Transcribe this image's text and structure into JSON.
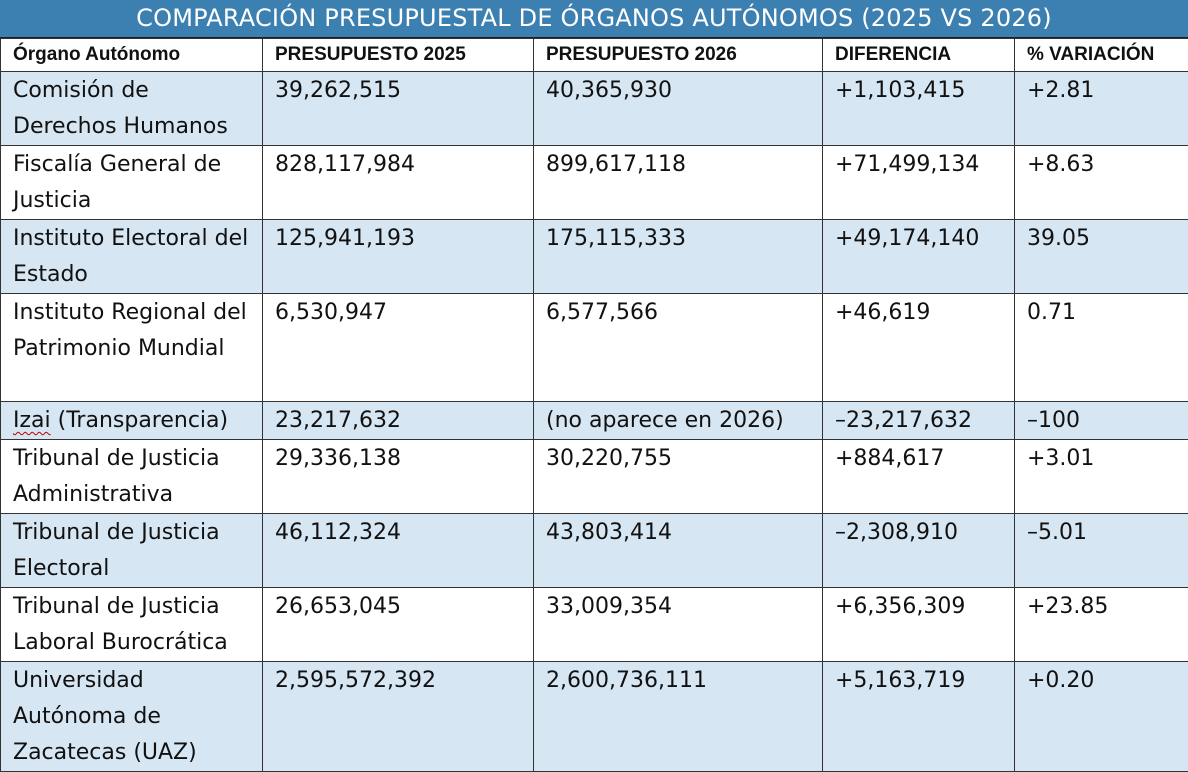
{
  "title": "COMPARACIÓN PRESUPUESTAL DE ÓRGANOS AUTÓNOMOS (2025 VS 2026)",
  "headers": {
    "organo": "Órgano Autónomo",
    "p2025": "PRESUPUESTO 2025",
    "p2026": "PRESUPUESTO 2026",
    "diferencia": "DIFERENCIA",
    "variacion": "% VARIACIÓN"
  },
  "rows": [
    {
      "organo": "Comisión de Derechos Humanos",
      "p2025": "39,262,515",
      "p2026": "40,365,930",
      "diferencia": "+1,103,415",
      "variacion": "+2.81"
    },
    {
      "organo": "Fiscalía General de Justicia",
      "p2025": "828,117,984",
      "p2026": "899,617,118",
      "diferencia": "+71,499,134",
      "variacion": "+8.63"
    },
    {
      "organo": "Instituto Electoral del Estado",
      "p2025": "125,941,193",
      "p2026": "175,115,333",
      "diferencia": "+49,174,140",
      "variacion": "39.05"
    },
    {
      "organo": "Instituto Regional del Patrimonio Mundial",
      "p2025": "6,530,947",
      "p2026": "6,577,566",
      "diferencia": "+46,619",
      "variacion": "0.71"
    },
    {
      "organo_a": "Izai",
      "organo_b": " (Transparencia)",
      "p2025": "23,217,632",
      "p2026": "(no aparece en 2026)",
      "diferencia": "–23,217,632",
      "variacion": "–100"
    },
    {
      "organo": "Tribunal de Justicia Administrativa",
      "p2025": "29,336,138",
      "p2026": "30,220,755",
      "diferencia": "+884,617",
      "variacion": "+3.01"
    },
    {
      "organo": "Tribunal de Justicia Electoral",
      "p2025": "46,112,324",
      "p2026": "43,803,414",
      "diferencia": "–2,308,910",
      "variacion": "–5.01"
    },
    {
      "organo": "Tribunal de Justicia Laboral Burocrática",
      "p2025": "26,653,045",
      "p2026": "33,009,354",
      "diferencia": "+6,356,309",
      "variacion": "+23.85"
    },
    {
      "organo": "Universidad Autónoma de Zacatecas (UAZ)",
      "p2025": "2,595,572,392",
      "p2026": "2,600,736,111",
      "diferencia": "+5,163,719",
      "variacion": "+0.20"
    }
  ],
  "colors": {
    "title_bg": "#3c7fb1",
    "stripe": "#d6e6f3",
    "border": "#333333"
  }
}
